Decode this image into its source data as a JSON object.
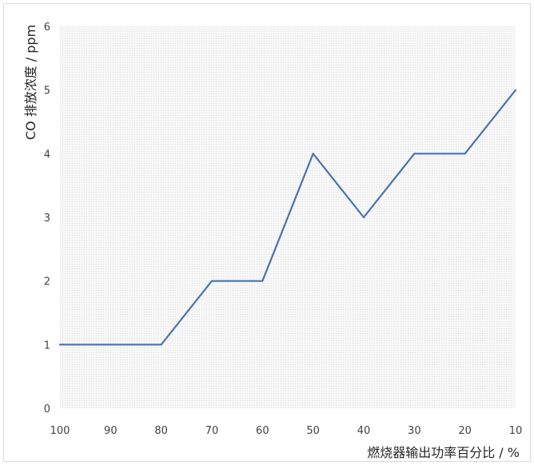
{
  "chart_data": {
    "type": "line",
    "title": "",
    "xlabel": "燃烧器输出功率百分比 / %",
    "ylabel": "CO 排放浓度 / ppm",
    "x": [
      100,
      90,
      80,
      70,
      60,
      50,
      40,
      30,
      20,
      10
    ],
    "series": [
      {
        "values": [
          1,
          1,
          1,
          2,
          2,
          4,
          3,
          4,
          4,
          5
        ]
      }
    ],
    "xlim": [
      100,
      10
    ],
    "ylim": [
      0,
      6
    ],
    "x_ticks": [
      "100",
      "90",
      "80",
      "70",
      "60",
      "50",
      "40",
      "30",
      "20",
      "10"
    ],
    "y_ticks": [
      "0",
      "1",
      "2",
      "3",
      "4",
      "5",
      "6"
    ],
    "grid": false,
    "legend": "none",
    "colors": {
      "line": "#4a72ad",
      "plot_background": "#f2f2f2",
      "frame": "#d9d9d9"
    }
  }
}
